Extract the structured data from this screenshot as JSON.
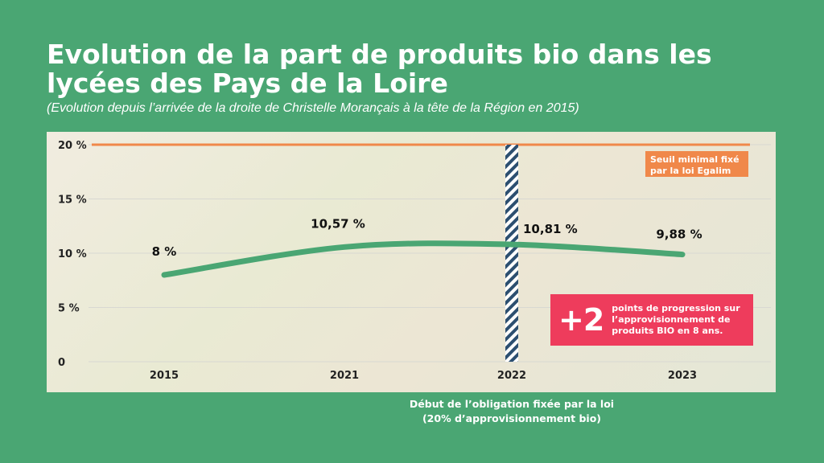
{
  "header": {
    "title": "Evolution de la part de produits bio dans les lycées des Pays de la Loire",
    "subtitle": "(Evolution depuis l’arrivée de la droite de Christelle Morançais à la tête de la Région en 2015)"
  },
  "chart_data": {
    "type": "line",
    "categories": [
      "2015",
      "2021",
      "2022",
      "2023"
    ],
    "values": [
      8,
      10.57,
      10.81,
      9.88
    ],
    "data_labels": [
      "8 %",
      "10,57 %",
      "10,81 %",
      "9,88 %"
    ],
    "y_ticks": [
      {
        "value": 0,
        "label": "0"
      },
      {
        "value": 5,
        "label": "5 %"
      },
      {
        "value": 10,
        "label": "10 %"
      },
      {
        "value": 15,
        "label": "15 %"
      },
      {
        "value": 20,
        "label": "20 %"
      }
    ],
    "ylim": [
      0,
      20
    ],
    "grid": true,
    "threshold": {
      "value": 20,
      "label": "Seuil minimal fixé par la loi Egalim"
    },
    "marker_category": "2022",
    "marker_label": "Début de l’obligation fixée par la loi (20% d’approvisionnement bio)",
    "callout": {
      "big": "+2",
      "text": "points de progression sur l’approvisionnement de produits BIO en 8 ans."
    }
  },
  "colors": {
    "background": "#4aa673",
    "line": "#4aa673",
    "threshold": "#f0884a",
    "marker_stripe": "#2c4f70",
    "callout": "#ee3c5c"
  }
}
